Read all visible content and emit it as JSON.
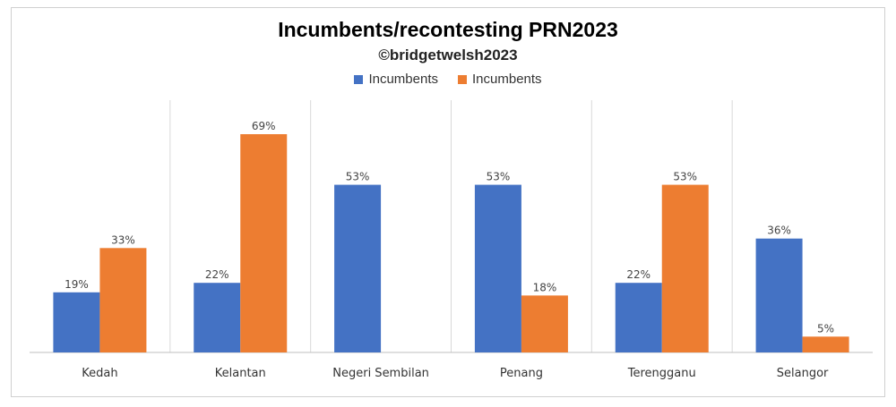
{
  "chart_data": {
    "type": "bar",
    "title": "Incumbents/recontesting PRN2023",
    "subtitle": "©bridgetwelsh2023",
    "categories": [
      "Kedah",
      "Kelantan",
      "Negeri Sembilan",
      "Penang",
      "Terengganu",
      "Selangor"
    ],
    "series": [
      {
        "name": "Incumbents",
        "color": "#4472C4",
        "values": [
          19,
          22,
          53,
          53,
          22,
          36
        ],
        "labels": [
          "19%",
          "22%",
          "53%",
          "53%",
          "22%",
          "36%"
        ]
      },
      {
        "name": "Incumbents",
        "color": "#ED7D31",
        "values": [
          33,
          69,
          null,
          18,
          53,
          5
        ],
        "labels": [
          "33%",
          "69%",
          "",
          "18%",
          "53%",
          "5%"
        ]
      }
    ],
    "ylim": [
      0,
      69
    ],
    "grid": false,
    "legend": "top"
  }
}
